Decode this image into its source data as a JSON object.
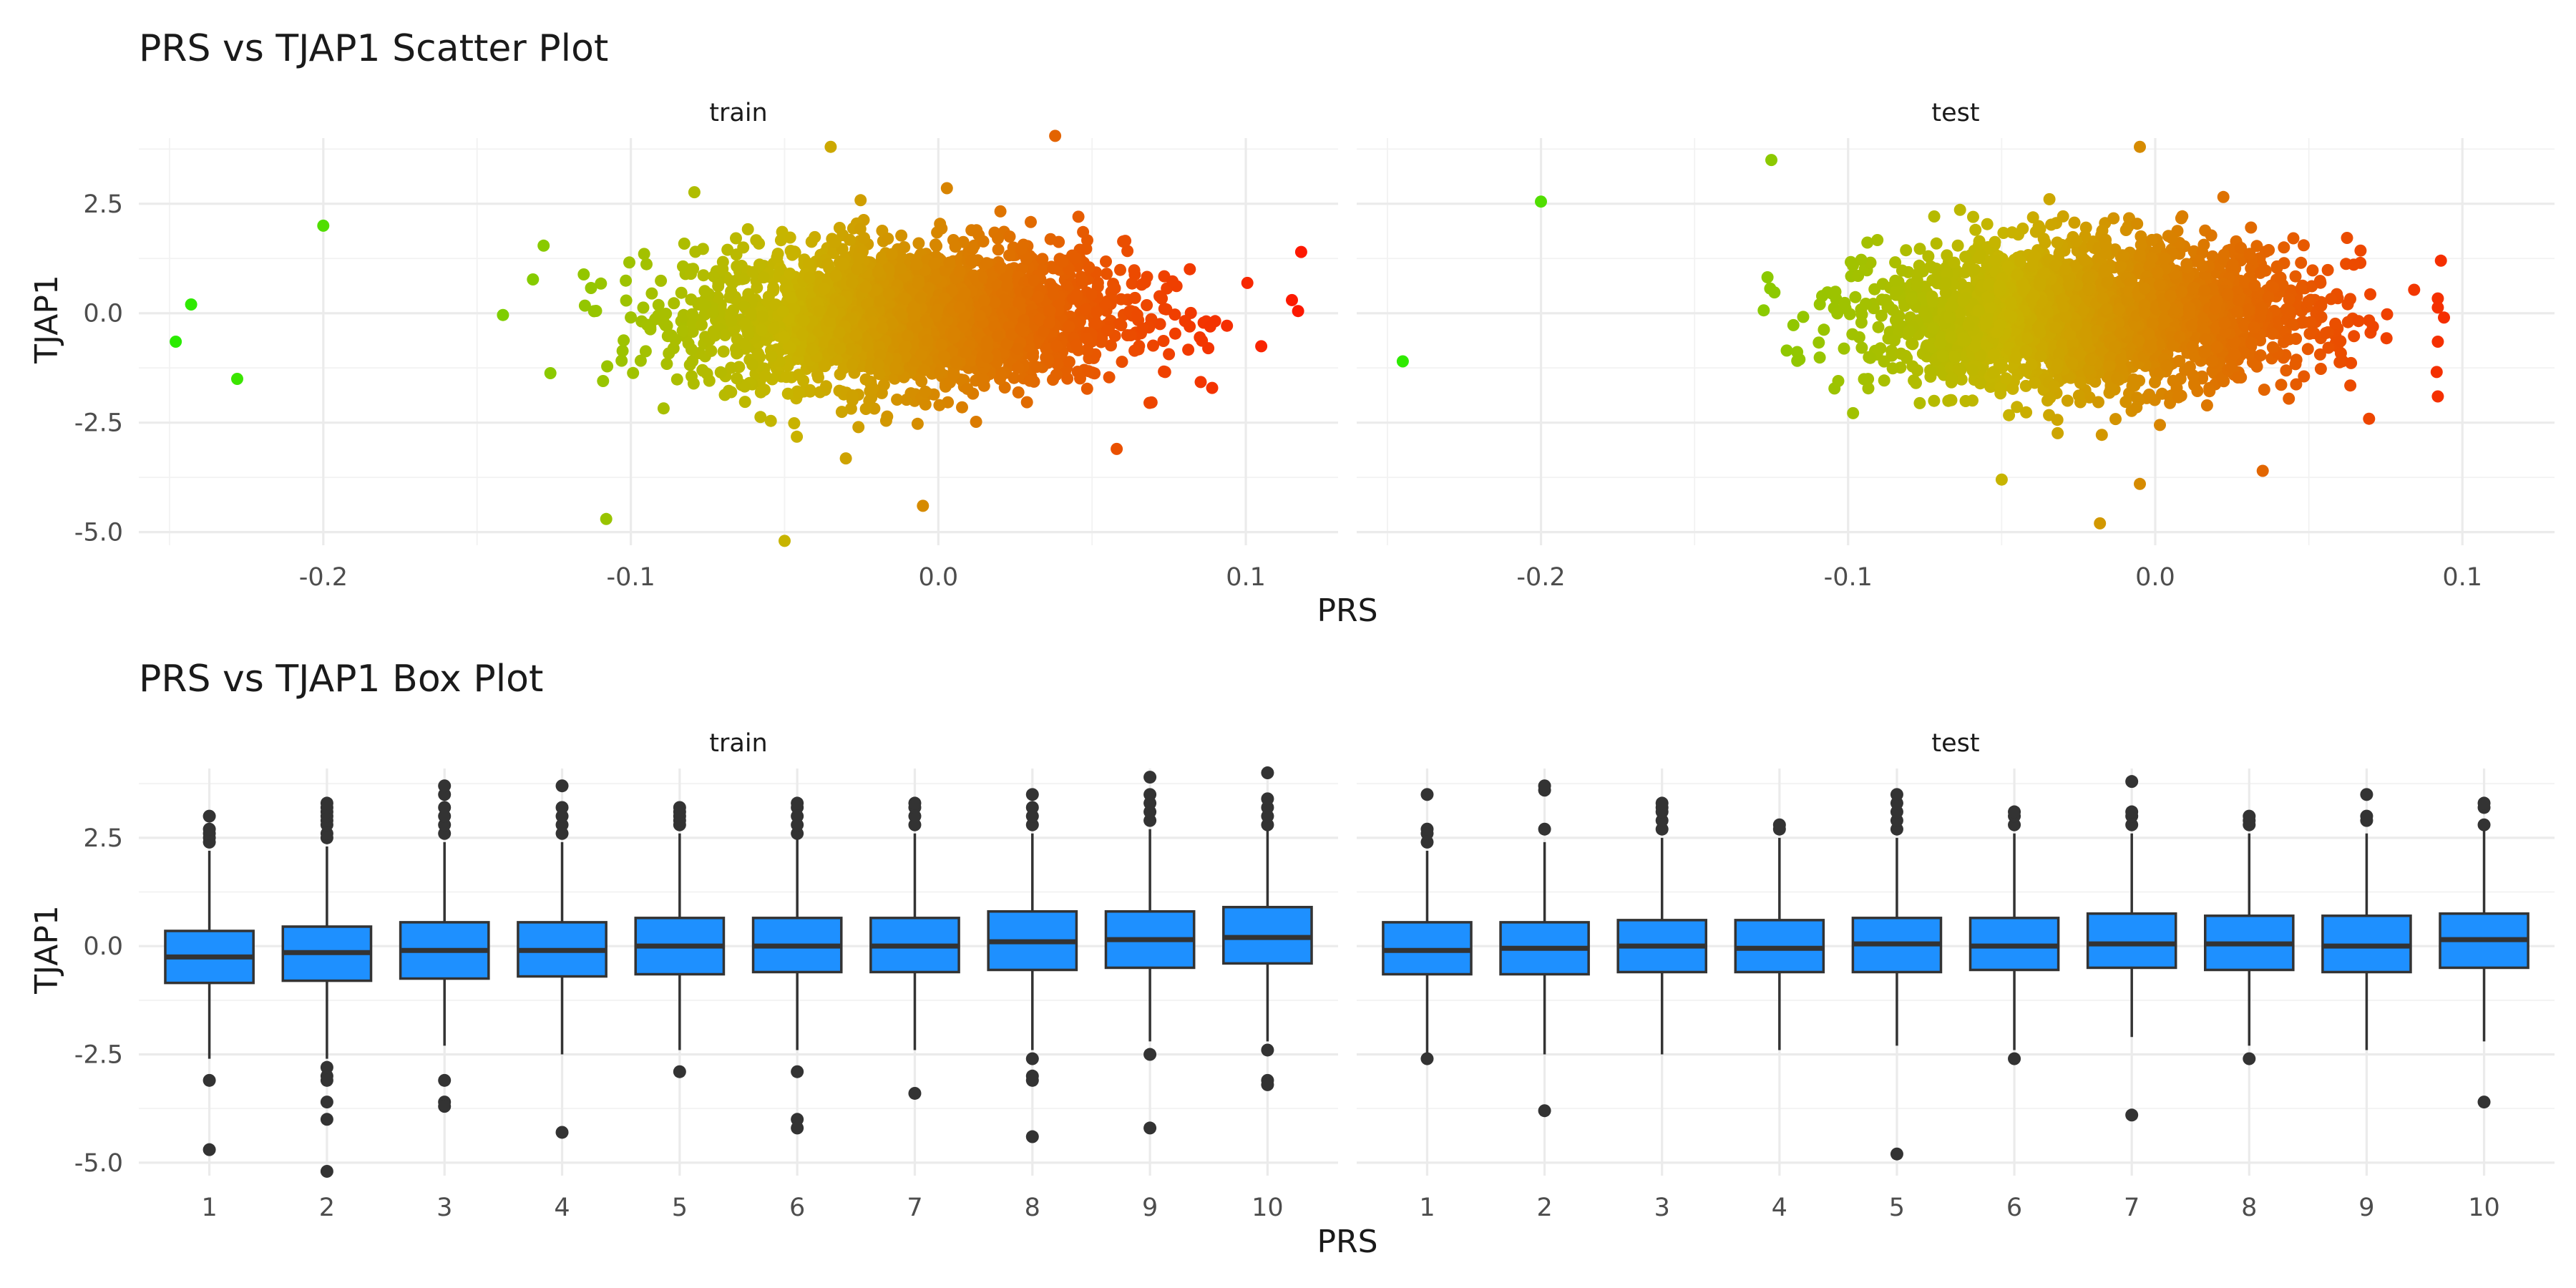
{
  "figure": {
    "scatter_title": "PRS vs TJAP1 Scatter Plot",
    "box_title": "PRS vs TJAP1 Box Plot",
    "panel_labels": [
      "train",
      "test"
    ],
    "xlabel": "PRS",
    "ylabel": "TJAP1"
  },
  "colors": {
    "gradient_low": "#22ee00",
    "gradient_mid": "#c8b400",
    "gradient_high": "#ff1100",
    "box_fill": "#1e90ff",
    "box_line": "#333333",
    "grid": "#ebebeb"
  },
  "chart_data": [
    {
      "type": "scatter",
      "title": "PRS vs TJAP1 Scatter Plot",
      "xlabel": "PRS",
      "ylabel": "TJAP1",
      "xlim": [
        -0.26,
        0.13
      ],
      "ylim": [
        -5.3,
        4.0
      ],
      "x_ticks": [
        -0.2,
        -0.1,
        0.0,
        0.1
      ],
      "x_tick_labels": [
        "-0.2",
        "-0.1",
        "0.0",
        "0.1"
      ],
      "y_ticks": [
        -5.0,
        -2.5,
        0.0,
        2.5
      ],
      "y_tick_labels": [
        "-5.0",
        "-2.5",
        "0.0",
        "2.5"
      ],
      "color_by": "PRS",
      "grid": true,
      "panels": [
        {
          "name": "train",
          "x_center": -0.01,
          "x_sd": 0.035,
          "y_center": -0.05,
          "y_sd": 0.95,
          "extreme_points": [
            {
              "x": -0.248,
              "y": -0.65
            },
            {
              "x": -0.243,
              "y": 0.2
            },
            {
              "x": -0.228,
              "y": -1.5
            },
            {
              "x": -0.2,
              "y": 2.0
            },
            {
              "x": -0.108,
              "y": -4.7
            },
            {
              "x": -0.05,
              "y": -5.2
            },
            {
              "x": -0.035,
              "y": 3.8
            },
            {
              "x": 0.038,
              "y": 4.05
            },
            {
              "x": 0.118,
              "y": 1.4
            },
            {
              "x": 0.115,
              "y": 0.3
            },
            {
              "x": 0.117,
              "y": 0.05
            },
            {
              "x": 0.058,
              "y": -3.1
            },
            {
              "x": -0.005,
              "y": -4.4
            }
          ]
        },
        {
          "name": "test",
          "x_center": -0.02,
          "x_sd": 0.035,
          "y_center": -0.05,
          "y_sd": 0.95,
          "extreme_points": [
            {
              "x": -0.245,
              "y": -1.1
            },
            {
              "x": -0.2,
              "y": 2.55
            },
            {
              "x": -0.125,
              "y": 3.5
            },
            {
              "x": -0.05,
              "y": -3.8
            },
            {
              "x": -0.018,
              "y": -4.8
            },
            {
              "x": -0.005,
              "y": -3.9
            },
            {
              "x": -0.005,
              "y": 3.8
            },
            {
              "x": 0.093,
              "y": 1.2
            },
            {
              "x": 0.092,
              "y": -1.9
            },
            {
              "x": 0.094,
              "y": -0.1
            },
            {
              "x": 0.035,
              "y": -3.6
            }
          ]
        }
      ]
    },
    {
      "type": "box",
      "title": "PRS vs TJAP1 Box Plot",
      "xlabel": "PRS",
      "ylabel": "TJAP1",
      "categories": [
        "1",
        "2",
        "3",
        "4",
        "5",
        "6",
        "7",
        "8",
        "9",
        "10"
      ],
      "ylim": [
        -5.3,
        4.1
      ],
      "y_ticks": [
        -5.0,
        -2.5,
        0.0,
        2.5
      ],
      "y_tick_labels": [
        "-5.0",
        "-2.5",
        "0.0",
        "2.5"
      ],
      "grid": true,
      "panels": [
        {
          "name": "train",
          "boxes": [
            {
              "q1": -0.85,
              "median": -0.25,
              "q3": 0.35,
              "whisker_low": -2.6,
              "whisker_high": 2.2,
              "outliers": [
                2.4,
                2.5,
                2.6,
                2.7,
                3.0,
                -3.1,
                -4.7
              ]
            },
            {
              "q1": -0.8,
              "median": -0.15,
              "q3": 0.45,
              "whisker_low": -2.6,
              "whisker_high": 2.3,
              "outliers": [
                2.5,
                2.6,
                2.8,
                2.9,
                3.0,
                3.1,
                3.2,
                3.3,
                -2.8,
                -3.0,
                -3.1,
                -3.6,
                -4.0,
                -5.2
              ]
            },
            {
              "q1": -0.75,
              "median": -0.1,
              "q3": 0.55,
              "whisker_low": -2.3,
              "whisker_high": 2.4,
              "outliers": [
                2.6,
                2.8,
                3.0,
                3.2,
                3.5,
                3.7,
                -3.1,
                -3.6,
                -3.7
              ]
            },
            {
              "q1": -0.7,
              "median": -0.1,
              "q3": 0.55,
              "whisker_low": -2.5,
              "whisker_high": 2.4,
              "outliers": [
                2.6,
                2.8,
                3.0,
                3.2,
                3.7,
                -4.3
              ]
            },
            {
              "q1": -0.65,
              "median": 0.0,
              "q3": 0.65,
              "whisker_low": -2.4,
              "whisker_high": 2.6,
              "outliers": [
                2.8,
                2.9,
                3.0,
                3.1,
                3.2,
                -2.9
              ]
            },
            {
              "q1": -0.6,
              "median": 0.0,
              "q3": 0.65,
              "whisker_low": -2.4,
              "whisker_high": 2.5,
              "outliers": [
                2.6,
                2.8,
                3.0,
                3.2,
                3.3,
                -2.9,
                -4.0,
                -4.2
              ]
            },
            {
              "q1": -0.6,
              "median": 0.0,
              "q3": 0.65,
              "whisker_low": -2.4,
              "whisker_high": 2.6,
              "outliers": [
                2.8,
                3.0,
                3.2,
                3.3,
                -3.4
              ]
            },
            {
              "q1": -0.55,
              "median": 0.1,
              "q3": 0.8,
              "whisker_low": -2.4,
              "whisker_high": 2.6,
              "outliers": [
                2.8,
                3.0,
                3.2,
                3.5,
                -2.6,
                -3.0,
                -3.1,
                -4.4
              ]
            },
            {
              "q1": -0.5,
              "median": 0.15,
              "q3": 0.8,
              "whisker_low": -2.2,
              "whisker_high": 2.7,
              "outliers": [
                2.9,
                3.1,
                3.3,
                3.5,
                3.9,
                -2.5,
                -4.2
              ]
            },
            {
              "q1": -0.4,
              "median": 0.2,
              "q3": 0.9,
              "whisker_low": -2.2,
              "whisker_high": 2.7,
              "outliers": [
                2.8,
                3.0,
                3.2,
                3.4,
                4.0,
                -2.4,
                -3.1,
                -3.2
              ]
            }
          ]
        },
        {
          "name": "test",
          "boxes": [
            {
              "q1": -0.65,
              "median": -0.1,
              "q3": 0.55,
              "whisker_low": -2.5,
              "whisker_high": 2.2,
              "outliers": [
                2.4,
                2.6,
                2.7,
                3.5,
                -2.6
              ]
            },
            {
              "q1": -0.65,
              "median": -0.05,
              "q3": 0.55,
              "whisker_low": -2.5,
              "whisker_high": 2.4,
              "outliers": [
                2.7,
                3.6,
                3.7,
                -3.8
              ]
            },
            {
              "q1": -0.6,
              "median": 0.0,
              "q3": 0.6,
              "whisker_low": -2.5,
              "whisker_high": 2.5,
              "outliers": [
                2.7,
                2.9,
                3.1,
                3.2,
                3.3
              ]
            },
            {
              "q1": -0.6,
              "median": -0.05,
              "q3": 0.6,
              "whisker_low": -2.4,
              "whisker_high": 2.5,
              "outliers": [
                2.7,
                2.8
              ]
            },
            {
              "q1": -0.6,
              "median": 0.05,
              "q3": 0.65,
              "whisker_low": -2.3,
              "whisker_high": 2.5,
              "outliers": [
                2.7,
                2.9,
                3.1,
                3.3,
                3.5,
                -4.8
              ]
            },
            {
              "q1": -0.55,
              "median": 0.0,
              "q3": 0.65,
              "whisker_low": -2.4,
              "whisker_high": 2.6,
              "outliers": [
                2.8,
                3.0,
                3.1,
                -2.6
              ]
            },
            {
              "q1": -0.5,
              "median": 0.05,
              "q3": 0.75,
              "whisker_low": -2.1,
              "whisker_high": 2.6,
              "outliers": [
                2.8,
                3.0,
                3.1,
                3.8,
                -3.9
              ]
            },
            {
              "q1": -0.55,
              "median": 0.05,
              "q3": 0.7,
              "whisker_low": -2.3,
              "whisker_high": 2.6,
              "outliers": [
                2.8,
                2.9,
                3.0,
                -2.6
              ]
            },
            {
              "q1": -0.6,
              "median": 0.0,
              "q3": 0.7,
              "whisker_low": -2.4,
              "whisker_high": 2.6,
              "outliers": [
                2.9,
                3.0,
                3.5
              ]
            },
            {
              "q1": -0.5,
              "median": 0.15,
              "q3": 0.75,
              "whisker_low": -2.2,
              "whisker_high": 2.7,
              "outliers": [
                2.8,
                3.2,
                3.3,
                -3.6
              ]
            }
          ]
        }
      ]
    }
  ]
}
